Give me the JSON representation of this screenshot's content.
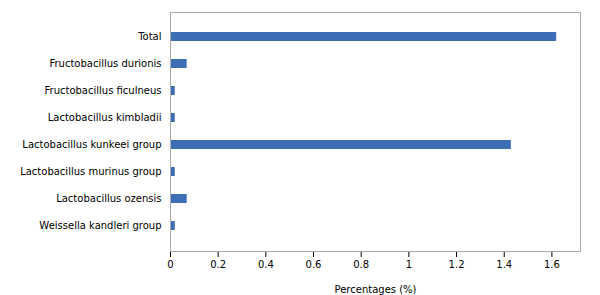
{
  "chart_data": {
    "type": "bar",
    "orientation": "horizontal",
    "categories": [
      "Weissella kandleri group",
      "Lactobacillus ozensis",
      "Lactobacillus murinus group",
      "Lactobacillus kunkeei group",
      "Lactobacillus kimbladii",
      "Fructobacillus ficulneus",
      "Fructobacillus durionis",
      "Total"
    ],
    "values": [
      0.02,
      0.07,
      0.02,
      1.43,
      0.02,
      0.02,
      0.07,
      1.62
    ],
    "color": "#3d6db5",
    "xlabel": "Percentages (%)",
    "xlim": [
      0,
      1.72
    ],
    "xticks": [
      0,
      0.2,
      0.4,
      0.6,
      0.8,
      1,
      1.2,
      1.4,
      1.6
    ],
    "grid": false
  }
}
